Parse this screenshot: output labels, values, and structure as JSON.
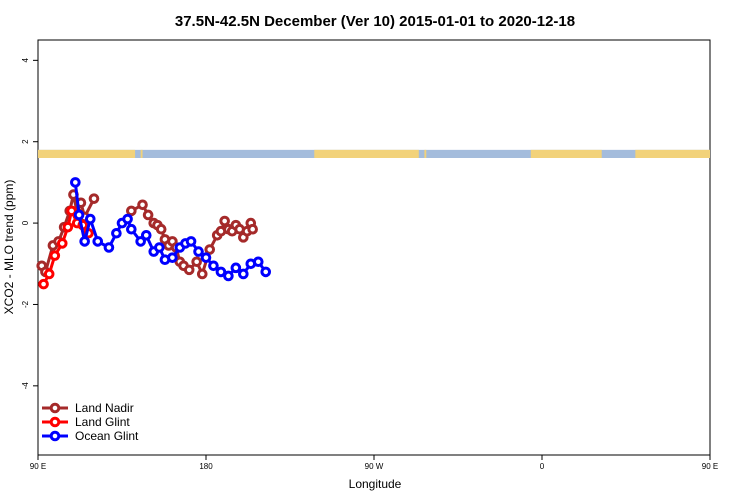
{
  "chart_data": {
    "type": "line",
    "title": "37.5N-42.5N December (Ver 10)   2015-01-01 to 2020-12-18",
    "xlabel": "Longitude",
    "ylabel": "XCO2 - MLO trend (ppm)",
    "xlim": [
      90,
      450
    ],
    "ylim": [
      -5.7,
      4.5
    ],
    "x_ticks": [
      90,
      180,
      270,
      360,
      450,
      540
    ],
    "x_tick_labels": [
      "90 E",
      "180",
      "90 W",
      "0",
      "90 E",
      "180"
    ],
    "y_ticks": [
      -4,
      -2,
      0,
      2,
      4
    ],
    "y_tick_labels": [
      "-4",
      "-2",
      "0",
      "2",
      "4"
    ],
    "grid": false,
    "legend_position": "bottom-left",
    "land_strip": {
      "y_range": [
        1.6,
        1.8
      ],
      "ocean_color": "#A4BCDC",
      "land_color": "#F2D27A",
      "land_spans": [
        [
          90,
          142
        ],
        [
          145,
          146
        ],
        [
          238,
          294
        ],
        [
          297,
          298
        ],
        [
          354,
          392
        ],
        [
          410,
          480
        ],
        [
          483,
          484
        ]
      ]
    },
    "series": [
      {
        "name": "Land Nadir",
        "color": "#A52A2A",
        "x": [
          92,
          94,
          98,
          101,
          104,
          107,
          109,
          111,
          113,
          115,
          120,
          140,
          146,
          149,
          152,
          154,
          156,
          158,
          160,
          162,
          164,
          166,
          168,
          171,
          175,
          178,
          182,
          186,
          188,
          190,
          192,
          194,
          196,
          198,
          200,
          202,
          204,
          205
        ],
        "y": [
          -1.05,
          -1.2,
          -0.55,
          -0.45,
          -0.1,
          0.3,
          0.7,
          0.25,
          0.5,
          0.15,
          0.6,
          0.3,
          0.45,
          0.2,
          0.0,
          -0.05,
          -0.15,
          -0.4,
          -0.55,
          -0.45,
          -0.6,
          -0.95,
          -1.05,
          -1.15,
          -0.95,
          -1.25,
          -0.65,
          -0.3,
          -0.2,
          0.05,
          -0.15,
          -0.2,
          -0.05,
          -0.15,
          -0.35,
          -0.2,
          0.0,
          -0.15
        ],
        "segments": [
          [
            0,
            10
          ],
          [
            11,
            37
          ]
        ]
      },
      {
        "name": "Land Glint",
        "color": "#FF0000",
        "x": [
          93,
          96,
          99,
          103,
          106,
          108,
          111,
          114,
          117
        ],
        "y": [
          -1.5,
          -1.25,
          -0.8,
          -0.5,
          -0.1,
          0.3,
          0.0,
          -0.05,
          -0.25
        ]
      },
      {
        "name": "Ocean Glint",
        "color": "#0000FF",
        "x": [
          110,
          112,
          115,
          118,
          122,
          128,
          132,
          135,
          138,
          140,
          145,
          148,
          152,
          155,
          158,
          162,
          166,
          169,
          172,
          176,
          180,
          184,
          188,
          192,
          196,
          200,
          204,
          208,
          212
        ],
        "y": [
          1.0,
          0.2,
          -0.45,
          0.1,
          -0.45,
          -0.6,
          -0.25,
          0.0,
          0.1,
          -0.15,
          -0.45,
          -0.3,
          -0.7,
          -0.6,
          -0.9,
          -0.85,
          -0.6,
          -0.5,
          -0.45,
          -0.7,
          -0.85,
          -1.05,
          -1.2,
          -1.3,
          -1.1,
          -1.25,
          -1.0,
          -0.95,
          -1.2
        ]
      }
    ]
  },
  "legend": {
    "items": [
      {
        "label": "Land Nadir",
        "color": "#A52A2A"
      },
      {
        "label": "Land Glint",
        "color": "#FF0000"
      },
      {
        "label": "Ocean Glint",
        "color": "#0000FF"
      }
    ]
  }
}
